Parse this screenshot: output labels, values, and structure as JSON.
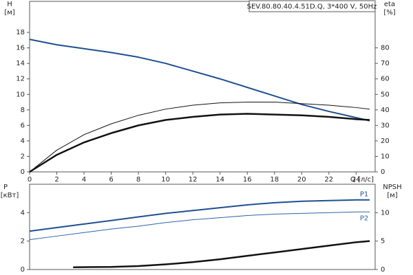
{
  "chart_data": [
    {
      "type": "line",
      "title": "SEV.80.80.40.4.51D.Q, 3*400 V, 50Hz",
      "y_label": [
        "H",
        "[м]"
      ],
      "y2_label": [
        "eta",
        "[%]"
      ],
      "x_label": "Q [л/с]",
      "xlim": [
        0,
        25.4
      ],
      "xticks": [
        0,
        2,
        4,
        6,
        8,
        10,
        12,
        14,
        16,
        18,
        20,
        22,
        24
      ],
      "ylim": [
        0,
        22
      ],
      "yticks": [
        0,
        2,
        4,
        6,
        8,
        10,
        12,
        14,
        16,
        18
      ],
      "y2lim": [
        0,
        110
      ],
      "y2ticks": [
        0,
        10,
        20,
        30,
        40,
        50,
        60,
        70,
        80
      ],
      "grid": false,
      "series": [
        {
          "color": "#1d4f8f",
          "line_width": 2,
          "axis": "y",
          "x": [
            0,
            2,
            4,
            6,
            8,
            10,
            12,
            14,
            16,
            18,
            20,
            22,
            24,
            25
          ],
          "values": [
            17.1,
            16.4,
            15.9,
            15.4,
            14.8,
            14.0,
            13.0,
            12.0,
            10.9,
            9.8,
            8.7,
            7.8,
            7.0,
            6.6
          ]
        },
        {
          "color": "#111111",
          "line_width": 1,
          "axis": "y2",
          "x": [
            0,
            2,
            4,
            6,
            8,
            10,
            12,
            14,
            16,
            18,
            20,
            22,
            24,
            25
          ],
          "values": [
            0,
            14,
            24,
            31,
            36.5,
            40.5,
            43,
            44.5,
            45,
            45,
            44,
            43,
            41.5,
            40.5
          ]
        },
        {
          "color": "#111111",
          "line_width": 2.5,
          "axis": "y2",
          "x": [
            0,
            2,
            4,
            6,
            8,
            10,
            12,
            14,
            16,
            18,
            20,
            22,
            24,
            25
          ],
          "values": [
            0,
            11,
            19,
            25,
            30,
            33.5,
            35.5,
            37,
            37.5,
            37,
            36.5,
            35.5,
            34,
            33.5
          ]
        }
      ]
    },
    {
      "type": "line",
      "y_label": [
        "P",
        "[кВт]"
      ],
      "y2_label": [
        "NPSH",
        "[м]"
      ],
      "xlim": [
        0,
        25.4
      ],
      "ylim": [
        0,
        6
      ],
      "yticks": [
        0,
        2,
        4
      ],
      "y2lim": [
        0,
        15
      ],
      "y2ticks": [
        0,
        5,
        10
      ],
      "grid": false,
      "series": [
        {
          "name": "P1",
          "color": "#1d4f8f",
          "line_width": 2,
          "axis": "y",
          "x": [
            0,
            2,
            4,
            6,
            8,
            10,
            12,
            14,
            16,
            18,
            20,
            22,
            24,
            25
          ],
          "values": [
            2.7,
            2.95,
            3.2,
            3.45,
            3.7,
            3.95,
            4.15,
            4.35,
            4.55,
            4.7,
            4.8,
            4.85,
            4.9,
            4.9
          ]
        },
        {
          "name": "P2",
          "color": "#2a62a8",
          "line_width": 1,
          "axis": "y",
          "x": [
            0,
            2,
            4,
            6,
            8,
            10,
            12,
            14,
            16,
            18,
            20,
            22,
            24,
            25
          ],
          "values": [
            2.1,
            2.35,
            2.6,
            2.85,
            3.05,
            3.3,
            3.5,
            3.65,
            3.8,
            3.9,
            3.95,
            4.0,
            4.05,
            4.05
          ]
        },
        {
          "color": "#111111",
          "line_width": 2.5,
          "axis": "y2",
          "x": [
            3.2,
            6,
            8,
            10,
            12,
            14,
            16,
            18,
            20,
            22,
            24,
            25
          ],
          "values": [
            0.4,
            0.45,
            0.6,
            0.9,
            1.3,
            1.8,
            2.4,
            3.0,
            3.6,
            4.2,
            4.8,
            5.0
          ]
        }
      ]
    }
  ]
}
